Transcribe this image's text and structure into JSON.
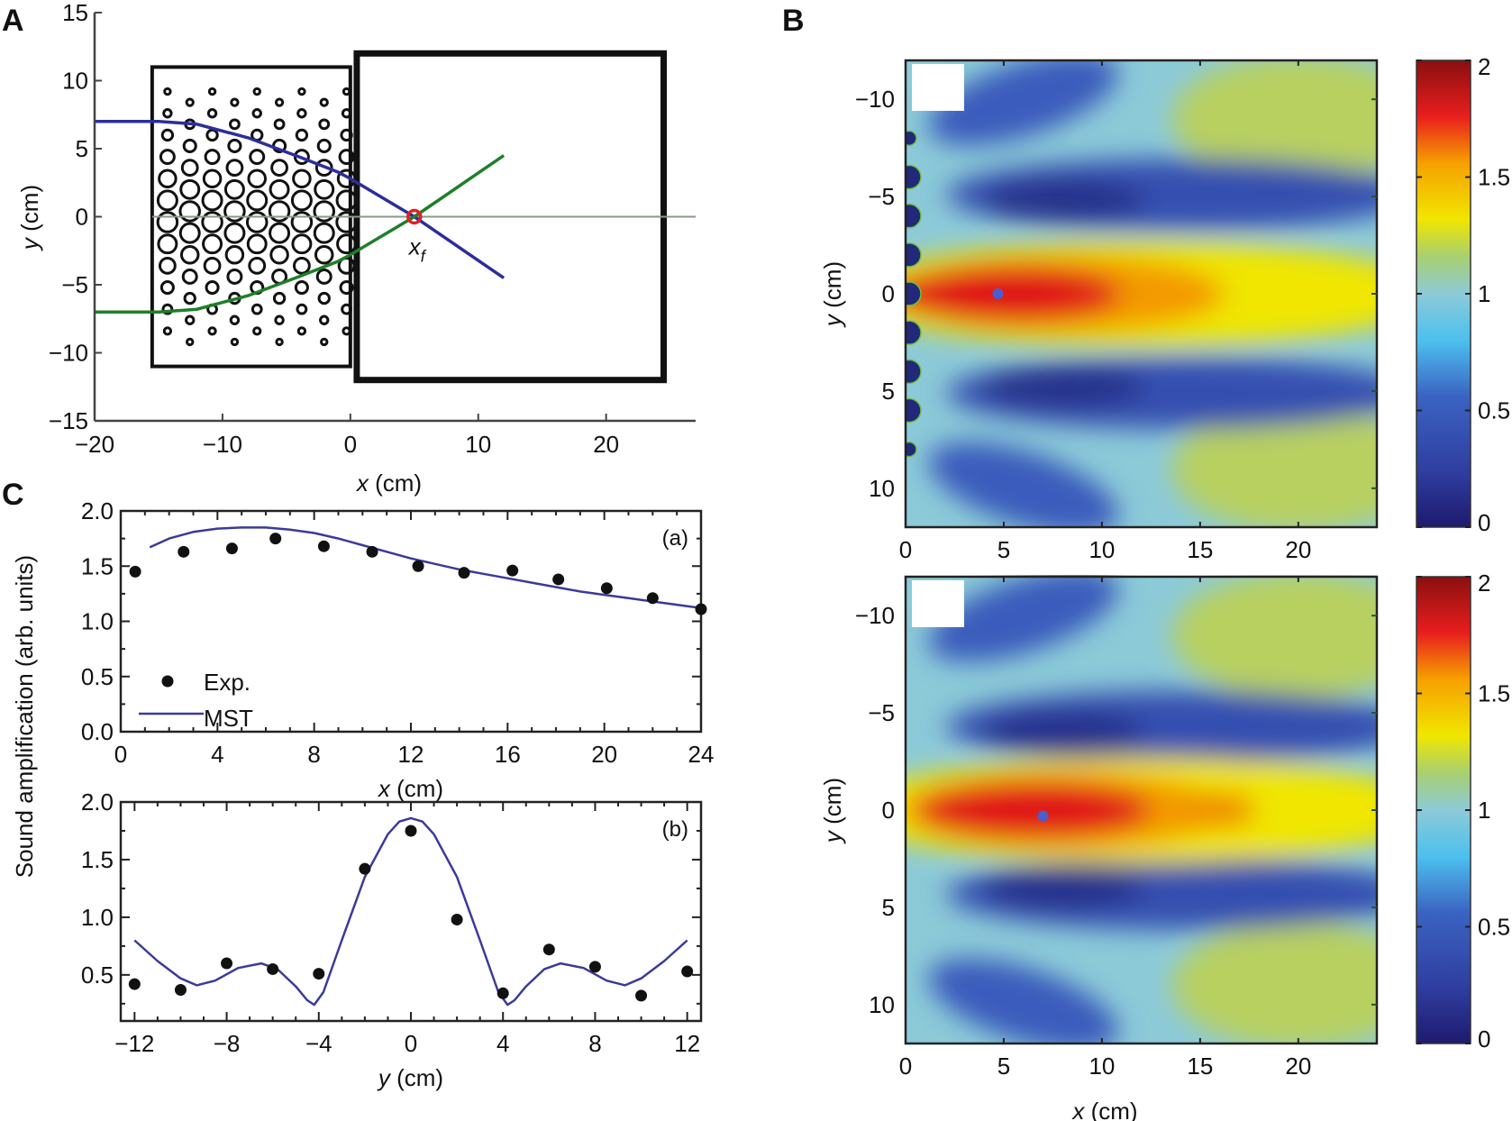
{
  "chart_data": [
    {
      "panel": "A",
      "type": "diagram",
      "panel_label": "A",
      "xlabel_var": "x",
      "xlabel_unit": " (cm)",
      "ylabel_var": "y",
      "ylabel_unit": " (cm)",
      "xlim": [
        -20,
        27
      ],
      "ylim": [
        -15,
        15
      ],
      "xticks": [
        -20,
        -10,
        0,
        10,
        20
      ],
      "xtick_labels": [
        "−20",
        "−10",
        "0",
        "10",
        "20"
      ],
      "yticks": [
        15,
        10,
        5,
        0,
        -5,
        -10,
        -15
      ],
      "ytick_labels": [
        "15",
        "10",
        "5",
        "0",
        "−5",
        "−10",
        "−15"
      ],
      "lens_box": {
        "x": [
          -15.5,
          0
        ],
        "y": [
          -11,
          11
        ]
      },
      "domain_box": {
        "x": [
          0.5,
          24.5
        ],
        "y": [
          -12,
          12
        ]
      },
      "focus_label": "x",
      "focus_sub": "f",
      "focus_point": [
        5,
        0
      ],
      "rays": [
        {
          "name": "upper-ray",
          "color": "#2b2f9a",
          "points": [
            [
              -20,
              7
            ],
            [
              -15,
              7
            ],
            [
              -12,
              6.8
            ],
            [
              -8,
              5.8
            ],
            [
              -4,
              4.4
            ],
            [
              -1,
              3.3
            ],
            [
              0,
              2.8
            ],
            [
              5,
              0
            ],
            [
              12,
              -4.5
            ]
          ]
        },
        {
          "name": "lower-ray",
          "color": "#1f7f2a",
          "points": [
            [
              -20,
              -7
            ],
            [
              -15,
              -7
            ],
            [
              -12,
              -6.8
            ],
            [
              -8,
              -5.8
            ],
            [
              -4,
              -4.4
            ],
            [
              -1,
              -3.3
            ],
            [
              0,
              -2.8
            ],
            [
              5,
              0
            ],
            [
              12,
              4.5
            ]
          ]
        }
      ],
      "axis_line_color": "#8a9a8a",
      "focus_color": "#e0202a"
    },
    {
      "panel": "B-top",
      "type": "heatmap",
      "panel_label": "B",
      "ylabel_var": "y",
      "ylabel_unit": " (cm)",
      "xlim": [
        0,
        24
      ],
      "ylim": [
        -12,
        12
      ],
      "xticks": [
        0,
        5,
        10,
        15,
        20
      ],
      "xtick_labels": [
        "0",
        "5",
        "10",
        "15",
        "20"
      ],
      "yticks": [
        -10,
        -5,
        0,
        5,
        10
      ],
      "ytick_labels": [
        "−10",
        "−5",
        "0",
        "5",
        "10"
      ],
      "colorbar": {
        "min": 0,
        "max": 2,
        "ticks": [
          0,
          0.5,
          1,
          1.5,
          2
        ],
        "tick_labels": [
          "0",
          "0.5",
          "1",
          "1.5",
          "2"
        ]
      },
      "focus_marker": [
        4.7,
        0
      ],
      "peak_value": 2.0
    },
    {
      "panel": "B-bottom",
      "type": "heatmap",
      "xlabel_var": "x",
      "xlabel_unit": " (cm)",
      "ylabel_var": "y",
      "ylabel_unit": " (cm)",
      "xlim": [
        0,
        24
      ],
      "ylim": [
        -12,
        12
      ],
      "xticks": [
        0,
        5,
        10,
        15,
        20
      ],
      "xtick_labels": [
        "0",
        "5",
        "10",
        "15",
        "20"
      ],
      "yticks": [
        -10,
        -5,
        0,
        5,
        10
      ],
      "ytick_labels": [
        "−10",
        "−5",
        "0",
        "5",
        "10"
      ],
      "colorbar": {
        "min": 0,
        "max": 2,
        "ticks": [
          0,
          0.5,
          1,
          1.5,
          2
        ],
        "tick_labels": [
          "0",
          "0.5",
          "1",
          "1.5",
          "2"
        ]
      },
      "focus_marker": [
        7,
        0.3
      ],
      "peak_value": 1.9
    },
    {
      "panel": "C-a",
      "type": "scatter",
      "panel_label": "C",
      "subpanel": "(a)",
      "xlabel_var": "x",
      "xlabel_unit": " (cm)",
      "ylabel": "Sound amplification (arb. units)",
      "xlim": [
        0,
        24
      ],
      "ylim": [
        0,
        2
      ],
      "xticks": [
        0,
        4,
        8,
        12,
        16,
        20,
        24
      ],
      "xtick_labels": [
        "0",
        "4",
        "8",
        "12",
        "16",
        "20",
        "24"
      ],
      "yticks": [
        0,
        0.5,
        1.0,
        1.5,
        2.0
      ],
      "ytick_labels": [
        "0.0",
        "0.5",
        "1.0",
        "1.5",
        "2.0"
      ],
      "legend": {
        "exp": "Exp.",
        "mst": "MST",
        "position": "bottom-left"
      },
      "series": [
        {
          "name": "Exp.",
          "type": "scatter",
          "x": [
            0.6,
            2.6,
            4.6,
            6.4,
            8.4,
            10.4,
            12.3,
            14.2,
            16.2,
            18.1,
            20.1,
            22.0,
            24.0
          ],
          "y": [
            1.45,
            1.63,
            1.66,
            1.75,
            1.68,
            1.63,
            1.5,
            1.44,
            1.46,
            1.38,
            1.3,
            1.21,
            1.11
          ]
        },
        {
          "name": "MST",
          "type": "line",
          "x": [
            1.2,
            2,
            3,
            4,
            5,
            6,
            7,
            8,
            9,
            10,
            11,
            12,
            13,
            14,
            15,
            16,
            17,
            18,
            19,
            20,
            21,
            22,
            23,
            24
          ],
          "y": [
            1.67,
            1.75,
            1.81,
            1.84,
            1.85,
            1.85,
            1.83,
            1.8,
            1.75,
            1.69,
            1.63,
            1.57,
            1.52,
            1.47,
            1.43,
            1.39,
            1.35,
            1.31,
            1.27,
            1.24,
            1.21,
            1.18,
            1.15,
            1.12
          ]
        }
      ],
      "series_color": "#3a3a9a"
    },
    {
      "panel": "C-b",
      "type": "scatter",
      "subpanel": "(b)",
      "xlabel_var": "y",
      "xlabel_unit": " (cm)",
      "xlim": [
        -12.6,
        12.6
      ],
      "ylim": [
        0.1,
        2.0
      ],
      "xticks": [
        -12,
        -8,
        -4,
        0,
        4,
        8,
        12
      ],
      "xtick_labels": [
        "−12",
        "−8",
        "−4",
        "0",
        "4",
        "8",
        "12"
      ],
      "yticks": [
        0.5,
        1.0,
        1.5,
        2.0
      ],
      "ytick_labels": [
        "0.5",
        "1.0",
        "1.5",
        "2.0"
      ],
      "series": [
        {
          "name": "Exp.",
          "type": "scatter",
          "x": [
            -12,
            -10,
            -8,
            -6,
            -4,
            -2,
            0,
            2,
            4,
            6,
            8,
            10,
            12
          ],
          "y": [
            0.42,
            0.37,
            0.6,
            0.55,
            0.51,
            1.42,
            1.75,
            0.98,
            0.34,
            0.72,
            0.57,
            0.32,
            0.53
          ]
        },
        {
          "name": "MST",
          "type": "line",
          "x": [
            -12,
            -11,
            -10,
            -9.3,
            -8.5,
            -7.5,
            -6.5,
            -5.8,
            -5,
            -4.5,
            -4.2,
            -3.8,
            -3,
            -2,
            -1,
            -0.5,
            0,
            0.5,
            1,
            2,
            3,
            3.8,
            4.2,
            4.5,
            5,
            5.8,
            6.5,
            7.5,
            8.5,
            9.3,
            10,
            11,
            12
          ],
          "y": [
            0.8,
            0.62,
            0.47,
            0.41,
            0.45,
            0.56,
            0.6,
            0.55,
            0.4,
            0.28,
            0.24,
            0.35,
            0.8,
            1.35,
            1.72,
            1.83,
            1.86,
            1.83,
            1.72,
            1.35,
            0.8,
            0.35,
            0.24,
            0.28,
            0.4,
            0.55,
            0.6,
            0.56,
            0.45,
            0.41,
            0.47,
            0.62,
            0.8
          ]
        }
      ],
      "series_color": "#3a3a9a"
    }
  ]
}
